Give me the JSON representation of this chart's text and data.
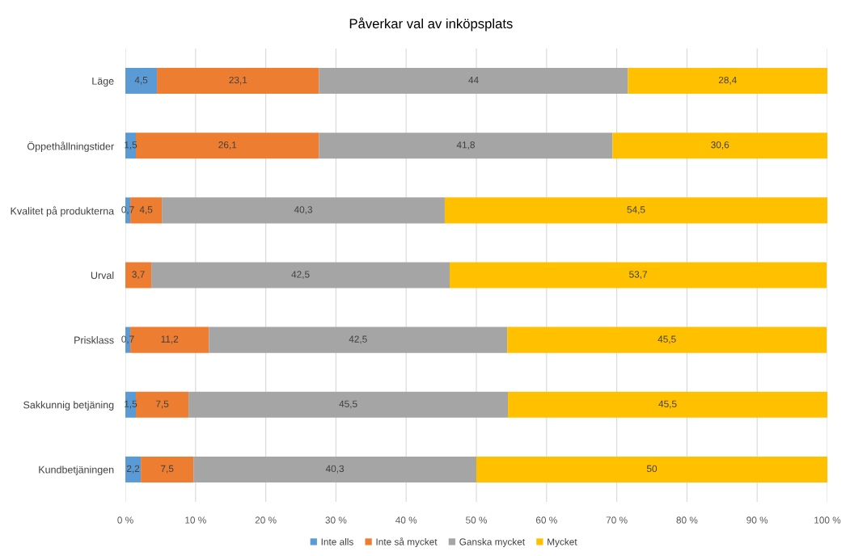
{
  "chart_data": {
    "type": "bar",
    "orientation": "horizontal",
    "stacked": true,
    "title": "Påverkar val av inköpsplats",
    "categories": [
      "Läge",
      "Öppethållningstider",
      "Kvalitet på produkterna",
      "Urval",
      "Prisklass",
      "Sakkunnig betjäning",
      "Kundbetjäningen"
    ],
    "series": [
      {
        "name": "Inte alls",
        "color": "#5b9bd5",
        "values": [
          4.5,
          1.5,
          0.7,
          null,
          0.7,
          1.5,
          2.2
        ],
        "value_labels": [
          "4,5",
          "1,5",
          "0,7",
          null,
          "0,7",
          "1,5",
          "2,2"
        ]
      },
      {
        "name": "Inte så mycket",
        "color": "#ed7d31",
        "values": [
          23.1,
          26.1,
          4.5,
          3.7,
          11.2,
          7.5,
          7.5
        ],
        "value_labels": [
          "23,1",
          "26,1",
          "4,5",
          "3,7",
          "11,2",
          "7,5",
          "7,5"
        ]
      },
      {
        "name": "Ganska mycket",
        "color": "#a5a5a5",
        "values": [
          44,
          41.8,
          40.3,
          42.5,
          42.5,
          45.5,
          40.3
        ],
        "value_labels": [
          "44",
          "41,8",
          "40,3",
          "42,5",
          "42,5",
          "45,5",
          "40,3"
        ]
      },
      {
        "name": "Mycket",
        "color": "#ffc000",
        "values": [
          28.4,
          30.6,
          54.5,
          53.7,
          45.5,
          45.5,
          50
        ],
        "value_labels": [
          "28,4",
          "30,6",
          "54,5",
          "53,7",
          "45,5",
          "45,5",
          "50"
        ]
      }
    ],
    "xlim": [
      0,
      100
    ],
    "xticks": [
      {
        "value": 0,
        "label": "0 %"
      },
      {
        "value": 10,
        "label": "10 %"
      },
      {
        "value": 20,
        "label": "20 %"
      },
      {
        "value": 30,
        "label": "30 %"
      },
      {
        "value": 40,
        "label": "40 %"
      },
      {
        "value": 50,
        "label": "50 %"
      },
      {
        "value": 60,
        "label": "60 %"
      },
      {
        "value": 70,
        "label": "70 %"
      },
      {
        "value": 80,
        "label": "80 %"
      },
      {
        "value": 90,
        "label": "90 %"
      },
      {
        "value": 100,
        "label": "100 %"
      }
    ],
    "grid": "x",
    "legend": "bottom"
  }
}
